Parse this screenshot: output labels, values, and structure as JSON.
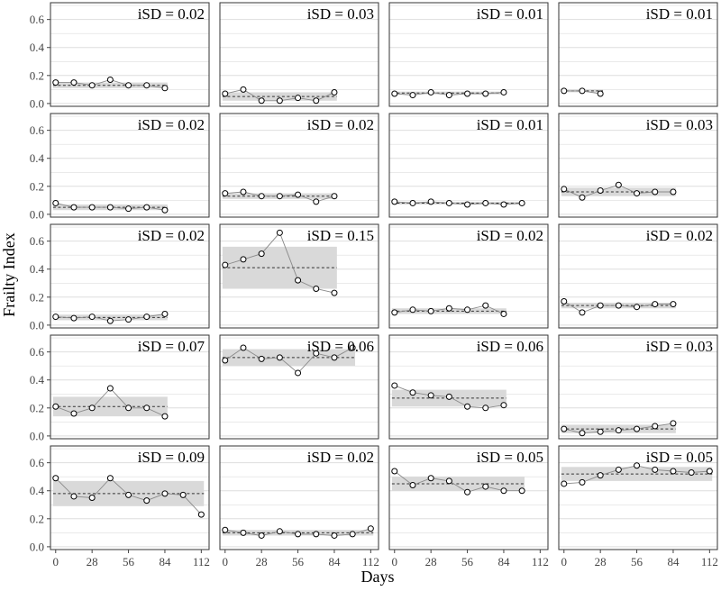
{
  "chart_data": {
    "type": "scatter",
    "layout": "faceted 5x4 small multiples",
    "xlabel": "Days",
    "ylabel": "Frailty Index",
    "xlim": [
      -4,
      118
    ],
    "ylim": [
      -0.02,
      0.72
    ],
    "x_ticks": [
      0,
      28,
      56,
      84,
      112
    ],
    "y_ticks": [
      0.0,
      0.2,
      0.4,
      0.6
    ],
    "x_tick_labels": [
      "0",
      "28",
      "56",
      "84",
      "112"
    ],
    "y_tick_labels": [
      "0.0",
      "0.2",
      "0.4",
      "0.6"
    ],
    "band": "mean ± iSD (shaded), dashed line = mean",
    "panels": [
      {
        "label": "iSD = 0.02",
        "mean": 0.13,
        "isd": 0.02,
        "x": [
          0,
          14,
          28,
          42,
          56,
          70,
          84
        ],
        "y": [
          0.15,
          0.15,
          0.13,
          0.17,
          0.13,
          0.13,
          0.11
        ]
      },
      {
        "label": "iSD = 0.03",
        "mean": 0.05,
        "isd": 0.03,
        "x": [
          0,
          14,
          28,
          42,
          56,
          70,
          84
        ],
        "y": [
          0.07,
          0.1,
          0.02,
          0.02,
          0.04,
          0.02,
          0.08
        ]
      },
      {
        "label": "iSD = 0.01",
        "mean": 0.075,
        "isd": 0.01,
        "x": [
          0,
          14,
          28,
          42,
          56,
          70,
          84
        ],
        "y": [
          0.07,
          0.06,
          0.08,
          0.06,
          0.07,
          0.07,
          0.08
        ]
      },
      {
        "label": "iSD = 0.01",
        "mean": 0.09,
        "isd": 0.01,
        "x": [
          0,
          14,
          28
        ],
        "y": [
          0.09,
          0.09,
          0.07
        ]
      },
      {
        "label": "iSD = 0.02",
        "mean": 0.05,
        "isd": 0.02,
        "x": [
          0,
          14,
          28,
          42,
          56,
          70,
          84
        ],
        "y": [
          0.08,
          0.05,
          0.05,
          0.05,
          0.04,
          0.05,
          0.03
        ]
      },
      {
        "label": "iSD = 0.02",
        "mean": 0.13,
        "isd": 0.02,
        "x": [
          0,
          14,
          28,
          42,
          56,
          70,
          84
        ],
        "y": [
          0.15,
          0.16,
          0.13,
          0.13,
          0.14,
          0.09,
          0.13
        ]
      },
      {
        "label": "iSD = 0.01",
        "mean": 0.08,
        "isd": 0.01,
        "x": [
          0,
          14,
          28,
          42,
          56,
          70,
          84,
          98
        ],
        "y": [
          0.09,
          0.08,
          0.09,
          0.08,
          0.07,
          0.08,
          0.07,
          0.08
        ]
      },
      {
        "label": "iSD = 0.03",
        "mean": 0.16,
        "isd": 0.03,
        "x": [
          0,
          14,
          28,
          42,
          56,
          70,
          84
        ],
        "y": [
          0.18,
          0.12,
          0.17,
          0.21,
          0.15,
          0.16,
          0.16
        ]
      },
      {
        "label": "iSD = 0.02",
        "mean": 0.055,
        "isd": 0.02,
        "x": [
          0,
          14,
          28,
          42,
          56,
          70,
          84
        ],
        "y": [
          0.06,
          0.05,
          0.06,
          0.03,
          0.04,
          0.06,
          0.08
        ]
      },
      {
        "label": "iSD = 0.15",
        "mean": 0.41,
        "isd": 0.15,
        "x": [
          0,
          14,
          28,
          42,
          56,
          70,
          84
        ],
        "y": [
          0.43,
          0.47,
          0.51,
          0.66,
          0.32,
          0.26,
          0.23
        ]
      },
      {
        "label": "iSD = 0.02",
        "mean": 0.1,
        "isd": 0.02,
        "x": [
          0,
          14,
          28,
          42,
          56,
          70,
          84
        ],
        "y": [
          0.09,
          0.11,
          0.1,
          0.12,
          0.11,
          0.14,
          0.08
        ]
      },
      {
        "label": "iSD = 0.02",
        "mean": 0.14,
        "isd": 0.02,
        "x": [
          0,
          14,
          28,
          42,
          56,
          70,
          84
        ],
        "y": [
          0.17,
          0.09,
          0.14,
          0.14,
          0.13,
          0.15,
          0.15
        ]
      },
      {
        "label": "iSD = 0.07",
        "mean": 0.21,
        "isd": 0.07,
        "x": [
          0,
          14,
          28,
          42,
          56,
          70,
          84
        ],
        "y": [
          0.21,
          0.16,
          0.2,
          0.34,
          0.2,
          0.2,
          0.14
        ]
      },
      {
        "label": "iSD = 0.06",
        "mean": 0.56,
        "isd": 0.06,
        "x": [
          0,
          14,
          28,
          42,
          56,
          70,
          84,
          98
        ],
        "y": [
          0.54,
          0.63,
          0.55,
          0.56,
          0.45,
          0.59,
          0.56,
          0.63
        ]
      },
      {
        "label": "iSD = 0.06",
        "mean": 0.27,
        "isd": 0.06,
        "x": [
          0,
          14,
          28,
          42,
          56,
          70,
          84
        ],
        "y": [
          0.36,
          0.31,
          0.29,
          0.28,
          0.21,
          0.2,
          0.22
        ]
      },
      {
        "label": "iSD = 0.03",
        "mean": 0.05,
        "isd": 0.03,
        "x": [
          0,
          14,
          28,
          42,
          56,
          70,
          84
        ],
        "y": [
          0.05,
          0.02,
          0.03,
          0.04,
          0.05,
          0.07,
          0.09
        ]
      },
      {
        "label": "iSD = 0.09",
        "mean": 0.38,
        "isd": 0.09,
        "x": [
          0,
          14,
          28,
          42,
          56,
          70,
          84,
          98,
          112
        ],
        "y": [
          0.49,
          0.36,
          0.35,
          0.49,
          0.37,
          0.33,
          0.38,
          0.37,
          0.23
        ]
      },
      {
        "label": "iSD = 0.02",
        "mean": 0.1,
        "isd": 0.02,
        "x": [
          0,
          14,
          28,
          42,
          56,
          70,
          84,
          98,
          112
        ],
        "y": [
          0.12,
          0.1,
          0.08,
          0.11,
          0.09,
          0.09,
          0.08,
          0.09,
          0.13
        ]
      },
      {
        "label": "iSD = 0.05",
        "mean": 0.45,
        "isd": 0.05,
        "x": [
          0,
          14,
          28,
          42,
          56,
          70,
          84,
          98
        ],
        "y": [
          0.54,
          0.44,
          0.49,
          0.47,
          0.39,
          0.43,
          0.4,
          0.4
        ]
      },
      {
        "label": "iSD = 0.05",
        "mean": 0.52,
        "isd": 0.05,
        "x": [
          0,
          14,
          28,
          42,
          56,
          70,
          84,
          98,
          112
        ],
        "y": [
          0.45,
          0.46,
          0.51,
          0.55,
          0.58,
          0.55,
          0.54,
          0.53,
          0.54
        ]
      }
    ]
  },
  "colors": {
    "band": "#d9d9d9",
    "grid": "#dedede",
    "panel_border": "#333333",
    "line": "#8a8a8a",
    "dash": "#333333",
    "point_fill": "#ffffff",
    "point_stroke": "#000000",
    "tick": "#444444"
  }
}
